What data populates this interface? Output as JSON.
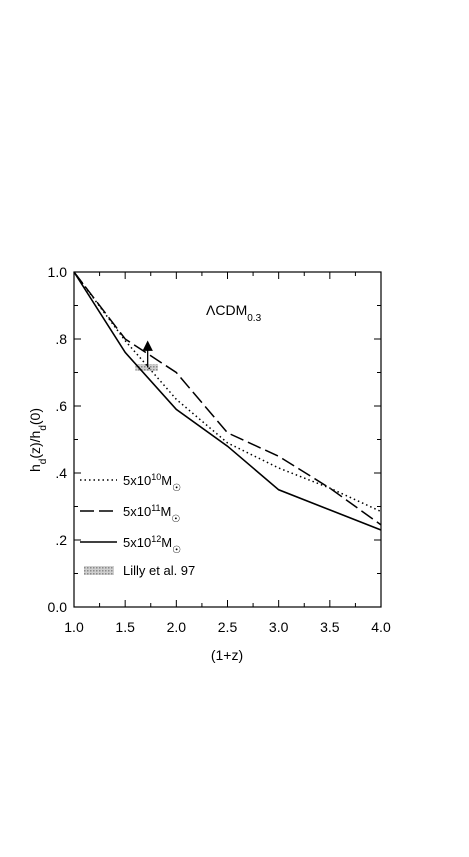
{
  "chart_data": {
    "type": "line",
    "title": "ΛCDM",
    "title_subscript": "0.3",
    "xlabel": "(1+z)",
    "ylabel": "h_d(z)/h_d(0)",
    "xlim": [
      1.0,
      4.0
    ],
    "ylim": [
      0.0,
      1.0
    ],
    "x_ticks": [
      1.0,
      1.5,
      2.0,
      2.5,
      3.0,
      3.5,
      4.0
    ],
    "x_tick_labels": [
      "1.0",
      "1.5",
      "2.0",
      "2.5",
      "3.0",
      "3.5",
      "4.0"
    ],
    "y_ticks": [
      0.0,
      0.2,
      0.4,
      0.6,
      0.8,
      1.0
    ],
    "y_tick_labels": [
      "0.0",
      ".2",
      ".4",
      ".6",
      ".8",
      "1.0"
    ],
    "grid": false,
    "legend_position": "bottom-left",
    "series": [
      {
        "name": "5x10¹⁰M☉",
        "name_base": "5x10",
        "name_exp": "10",
        "name_unit": "M",
        "style": "dotted",
        "x": [
          1.0,
          1.5,
          2.0,
          2.5,
          3.0,
          3.5,
          4.0
        ],
        "y": [
          1.0,
          0.795,
          0.62,
          0.49,
          0.415,
          0.355,
          0.285
        ]
      },
      {
        "name": "5x10¹¹M☉",
        "name_base": "5x10",
        "name_exp": "11",
        "name_unit": "M",
        "style": "long-dash",
        "x": [
          1.0,
          1.5,
          2.0,
          2.5,
          3.0,
          3.5,
          4.0
        ],
        "y": [
          1.0,
          0.8,
          0.7,
          0.52,
          0.45,
          0.355,
          0.245
        ]
      },
      {
        "name": "5x10¹²M☉",
        "name_base": "5x10",
        "name_exp": "12",
        "name_unit": "M",
        "style": "solid",
        "x": [
          1.0,
          1.5,
          2.0,
          2.5,
          3.0,
          3.5,
          4.0
        ],
        "y": [
          1.0,
          0.76,
          0.59,
          0.48,
          0.35,
          0.29,
          0.23
        ]
      }
    ],
    "observation": {
      "name": "Lilly et al. 97",
      "x_range": [
        1.6,
        1.82
      ],
      "y_range": [
        0.705,
        0.725
      ],
      "arrow_x": 1.72,
      "arrow_y_from": 0.715,
      "arrow_y_to": 0.795
    }
  }
}
